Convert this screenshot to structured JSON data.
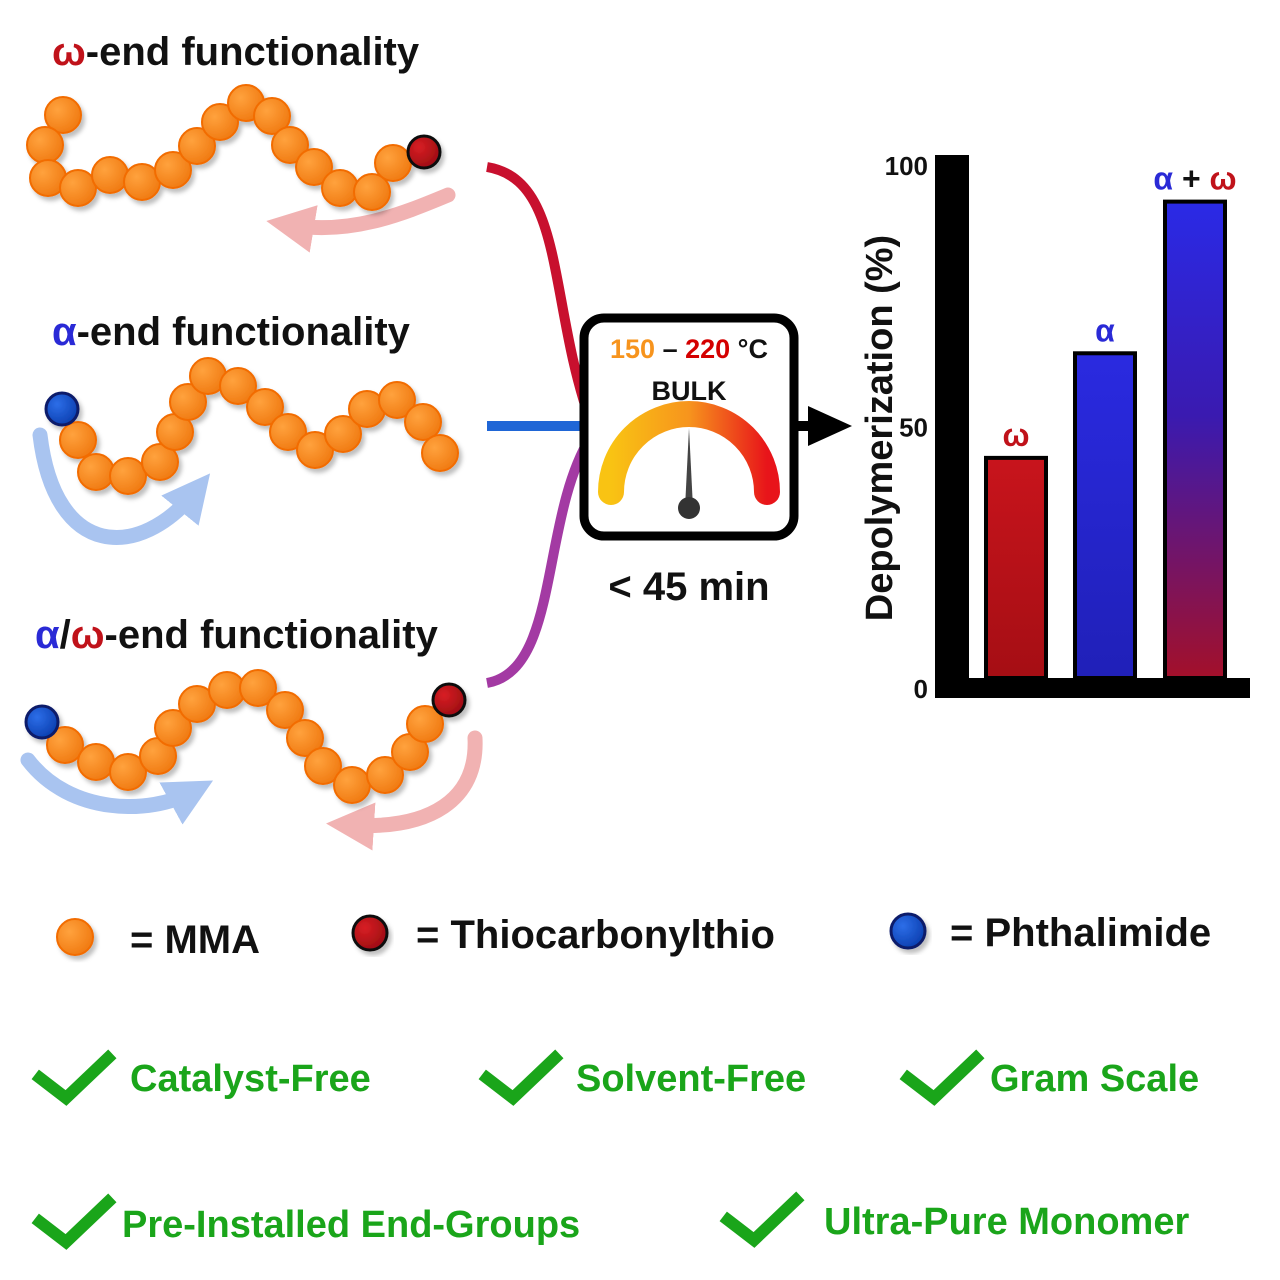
{
  "titles": {
    "omega": {
      "symbol": "ω",
      "rest": "-end functionality"
    },
    "alpha": {
      "symbol": "α",
      "rest": "-end functionality"
    },
    "both": {
      "sym_a": "α",
      "slash": "/",
      "sym_w": "ω",
      "rest": "-end functionality"
    }
  },
  "conditions": {
    "temp_low": "150",
    "dash": " – ",
    "temp_high": "220",
    "unit": " °C",
    "mode": "BULK",
    "time": "< 45 min"
  },
  "legend": {
    "mma": "= MMA",
    "thio": "= Thiocarbonylthio",
    "phth": "= Phthalimide"
  },
  "features": [
    "Catalyst-Free",
    "Solvent-Free",
    "Gram Scale",
    "Pre-Installed End-Groups",
    "Ultra-Pure Monomer"
  ],
  "chart_data": {
    "type": "bar",
    "title": "",
    "xlabel": "",
    "ylabel": "Depolymerization (%)",
    "ylim": [
      0,
      100
    ],
    "ytick_labels": [
      "0",
      "50",
      "100"
    ],
    "categories": [
      "ω",
      "α",
      "α + ω"
    ],
    "category_parts": [
      [
        {
          "t": "ω",
          "c": "omega"
        }
      ],
      [
        {
          "t": "α",
          "c": "alpha"
        }
      ],
      [
        {
          "t": "α",
          "c": "alpha"
        },
        {
          "t": " + ",
          "c": "plus"
        },
        {
          "t": "ω",
          "c": "omega"
        }
      ]
    ],
    "values": [
      44,
      64,
      93
    ]
  },
  "colors": {
    "alpha": "#2a2ad6",
    "omega": "#c0121a",
    "mma": "#f5851f",
    "check": "#1aa51a",
    "temp_low": "#f7941d",
    "temp_high": "#d40000",
    "line_omega": "#c8102e",
    "line_alpha": "#1f66d6",
    "line_both": "#a33aa3"
  }
}
